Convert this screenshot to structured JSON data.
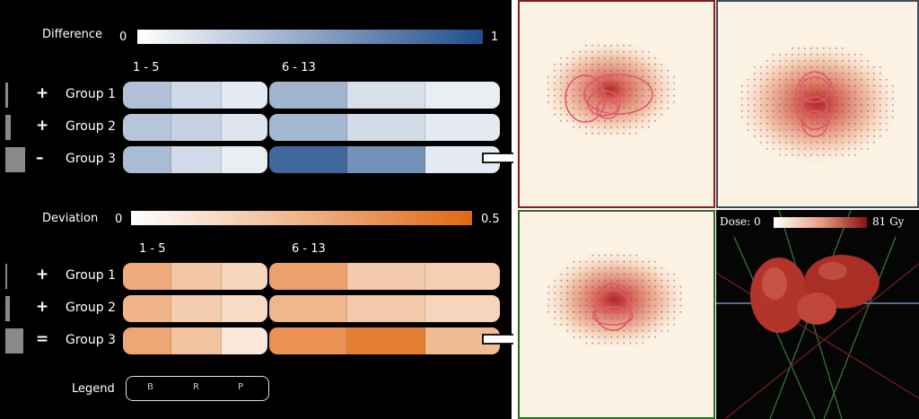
{
  "difference": {
    "label": "Difference",
    "min": "0",
    "max": "1",
    "colors": [
      "#ffffff",
      "#1f4e8c"
    ],
    "ranges": [
      "1 - 5",
      "6 - 13"
    ],
    "groups": [
      {
        "sign": "+",
        "label": "Group 1",
        "values": [
          0.35,
          0.22,
          0.12,
          0.42,
          0.18,
          0.1
        ]
      },
      {
        "sign": "+",
        "label": "Group 2",
        "values": [
          0.32,
          0.25,
          0.15,
          0.4,
          0.2,
          0.12
        ]
      },
      {
        "sign": "–",
        "label": "Group 3",
        "values": [
          0.38,
          0.2,
          0.1,
          0.85,
          0.62,
          0.12
        ]
      }
    ]
  },
  "deviation": {
    "label": "Deviation",
    "min": "0",
    "max": "0.5",
    "colors": [
      "#ffffff",
      "#e06812"
    ],
    "ranges": [
      "1 - 5",
      "6 - 13"
    ],
    "groups": [
      {
        "sign": "+",
        "label": "Group 1",
        "values": [
          0.55,
          0.38,
          0.28,
          0.62,
          0.35,
          0.32
        ]
      },
      {
        "sign": "+",
        "label": "Group 2",
        "values": [
          0.5,
          0.33,
          0.24,
          0.48,
          0.35,
          0.28
        ]
      },
      {
        "sign": "=",
        "label": "Group 3",
        "values": [
          0.58,
          0.4,
          0.15,
          0.72,
          0.85,
          0.45
        ]
      }
    ]
  },
  "legend": {
    "label": "Legend",
    "items": [
      "B",
      "R",
      "P"
    ]
  },
  "dose": {
    "label": "Dose: 0",
    "max": "81 Gy",
    "colors": [
      "#ffffff",
      "#8b1010"
    ]
  },
  "panels": [
    {
      "name": "panel-top-left",
      "border": "#8b1a1a"
    },
    {
      "name": "panel-top-right",
      "border": "#3a4a63"
    },
    {
      "name": "panel-bottom-left",
      "border": "#2e6a2e"
    },
    {
      "name": "panel-bottom-right",
      "border": "#cccccc"
    }
  ]
}
